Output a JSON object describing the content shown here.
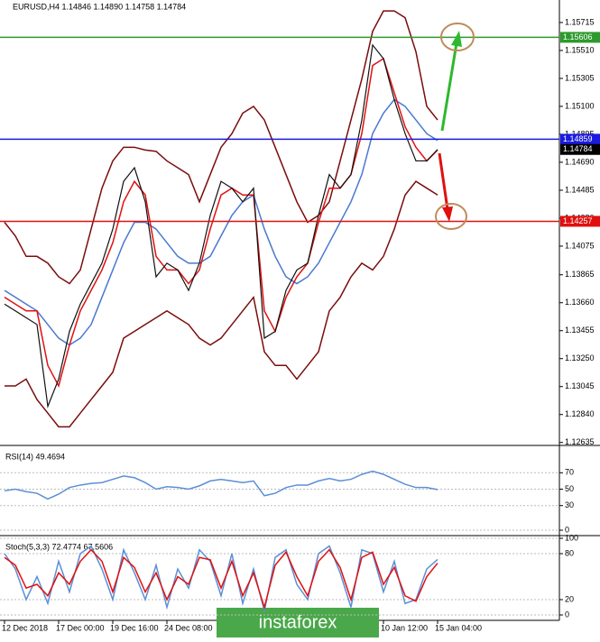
{
  "chart_data": [
    {
      "type": "line",
      "title": "EURUSD,H4  1.14846 1.14890 1.14758 1.14784",
      "categories": [
        "12 Dec 2018",
        null,
        null,
        null,
        null,
        "17 Dec 00:00",
        null,
        null,
        null,
        null,
        "19 Dec 16:00",
        null,
        null,
        null,
        null,
        "24 Dec 08:00",
        null,
        null,
        null,
        null,
        null,
        null,
        null,
        null,
        null,
        null,
        null,
        null,
        null,
        null,
        null,
        null,
        null,
        null,
        null,
        "10 Jan 12:00",
        null,
        null,
        null,
        null,
        "15 Jan 04:00"
      ],
      "ylim": [
        1.1262,
        1.1588
      ],
      "yticks": [
        1.15715,
        {
          "value": 1.1551,
          "label": "1.15510"
        },
        1.15305,
        {
          "value": 1.151,
          "label": "1.15100"
        },
        1.14895,
        {
          "value": 1.1469,
          "label": "1.14690"
        },
        1.14485,
        {
          "value": 1.1428,
          "label": "1.14280"
        },
        1.14075,
        1.13865,
        {
          "value": 1.1366,
          "label": "1.13660"
        },
        1.13455,
        {
          "value": 1.1325,
          "label": "1.13250"
        },
        1.13045,
        {
          "value": 1.1284,
          "label": "1.12840"
        },
        1.12635
      ],
      "series": [
        {
          "color": "#7a0c0c",
          "values": [
            1.1425,
            1.1415,
            1.14,
            1.14,
            1.1395,
            1.1385,
            1.138,
            1.139,
            1.142,
            1.145,
            1.147,
            1.148,
            1.148,
            1.1478,
            1.1477,
            1.147,
            1.1465,
            1.146,
            1.144,
            1.146,
            1.148,
            1.149,
            1.1505,
            1.151,
            1.15,
            1.148,
            1.146,
            1.144,
            1.1425,
            1.143,
            1.144,
            1.147,
            1.15,
            1.153,
            1.1565,
            1.158,
            1.158,
            1.1575,
            1.155,
            1.151,
            1.15
          ]
        },
        {
          "color": "#7a0c0c",
          "values": [
            1.1305,
            1.1305,
            1.131,
            1.1295,
            1.1285,
            1.1275,
            1.1275,
            1.1285,
            1.1295,
            1.1305,
            1.1315,
            1.134,
            1.1345,
            1.135,
            1.1355,
            1.136,
            1.1355,
            1.135,
            1.134,
            1.1335,
            1.134,
            1.135,
            1.136,
            1.137,
            1.133,
            1.132,
            1.132,
            1.131,
            1.132,
            1.133,
            1.136,
            1.137,
            1.1385,
            1.1395,
            1.139,
            1.14,
            1.142,
            1.1445,
            1.1455,
            1.145,
            1.1445
          ]
        },
        {
          "color": "#4a78d0",
          "values": [
            1.1375,
            1.137,
            1.1365,
            1.136,
            1.135,
            1.134,
            1.1335,
            1.134,
            1.135,
            1.137,
            1.139,
            1.141,
            1.1425,
            1.1425,
            1.142,
            1.141,
            1.14,
            1.1395,
            1.1395,
            1.14,
            1.1415,
            1.143,
            1.144,
            1.1445,
            1.142,
            1.14,
            1.1385,
            1.138,
            1.1385,
            1.1395,
            1.141,
            1.1425,
            1.144,
            1.146,
            1.149,
            1.1505,
            1.1515,
            1.151,
            1.15,
            1.149,
            1.1485
          ]
        },
        {
          "color": "#e01010",
          "values": [
            1.137,
            1.1365,
            1.136,
            1.136,
            1.132,
            1.1305,
            1.1335,
            1.136,
            1.1375,
            1.139,
            1.141,
            1.144,
            1.1455,
            1.1445,
            1.14,
            1.139,
            1.139,
            1.138,
            1.139,
            1.142,
            1.1445,
            1.145,
            1.1445,
            1.1445,
            1.136,
            1.1345,
            1.137,
            1.1385,
            1.1395,
            1.1425,
            1.145,
            1.145,
            1.146,
            1.149,
            1.154,
            1.1545,
            1.152,
            1.1495,
            1.148,
            1.147,
            1.1478
          ]
        },
        {
          "color": "#111111",
          "values": [
            1.1365,
            1.136,
            1.1355,
            1.135,
            1.129,
            1.131,
            1.1345,
            1.1365,
            1.138,
            1.1395,
            1.142,
            1.1455,
            1.1465,
            1.144,
            1.1385,
            1.1395,
            1.139,
            1.1375,
            1.1395,
            1.143,
            1.1455,
            1.145,
            1.144,
            1.145,
            1.134,
            1.1345,
            1.1375,
            1.139,
            1.1395,
            1.143,
            1.146,
            1.145,
            1.146,
            1.15,
            1.1555,
            1.1545,
            1.1515,
            1.149,
            1.147,
            1.147,
            1.14784
          ]
        }
      ],
      "levels": [
        {
          "value": 1.15606,
          "color": "#2e9a2e"
        },
        {
          "value": 1.14859,
          "color": "#1a1ae0"
        },
        {
          "value": 1.14784,
          "color": "#000000",
          "line": false
        },
        {
          "value": 1.14257,
          "color": "#e01010"
        }
      ]
    },
    {
      "type": "line",
      "title": "RSI(14) 49.4694",
      "ylim": [
        0,
        100
      ],
      "yticks": [
        70,
        50,
        30,
        0
      ],
      "grid": true,
      "series": [
        {
          "color": "#5b8fd6",
          "values": [
            48,
            50,
            47,
            45,
            38,
            44,
            52,
            55,
            57,
            58,
            62,
            66,
            64,
            58,
            50,
            53,
            52,
            50,
            54,
            60,
            62,
            60,
            58,
            60,
            42,
            45,
            52,
            55,
            55,
            60,
            63,
            60,
            62,
            68,
            72,
            68,
            62,
            56,
            52,
            52,
            49.4694
          ]
        }
      ]
    },
    {
      "type": "line",
      "title": "Stoch(5,3,3) 72.4774 67.5606",
      "ylim": [
        0,
        100
      ],
      "yticks": [
        100,
        80,
        20,
        0
      ],
      "grid": true,
      "series": [
        {
          "color": "#5b8fd6",
          "values": [
            80,
            60,
            20,
            50,
            15,
            70,
            30,
            80,
            90,
            60,
            20,
            85,
            55,
            20,
            65,
            10,
            60,
            35,
            85,
            70,
            25,
            80,
            15,
            60,
            5,
            75,
            85,
            40,
            20,
            80,
            90,
            55,
            10,
            85,
            80,
            30,
            70,
            15,
            20,
            60,
            72.4774
          ]
        },
        {
          "color": "#e01010",
          "values": [
            75,
            65,
            35,
            40,
            25,
            55,
            40,
            70,
            85,
            70,
            30,
            75,
            62,
            30,
            55,
            20,
            50,
            40,
            75,
            72,
            35,
            70,
            25,
            55,
            10,
            65,
            82,
            50,
            25,
            70,
            85,
            62,
            20,
            75,
            82,
            40,
            62,
            25,
            18,
            50,
            67.5606
          ]
        }
      ]
    }
  ],
  "watermark": "instaforex"
}
